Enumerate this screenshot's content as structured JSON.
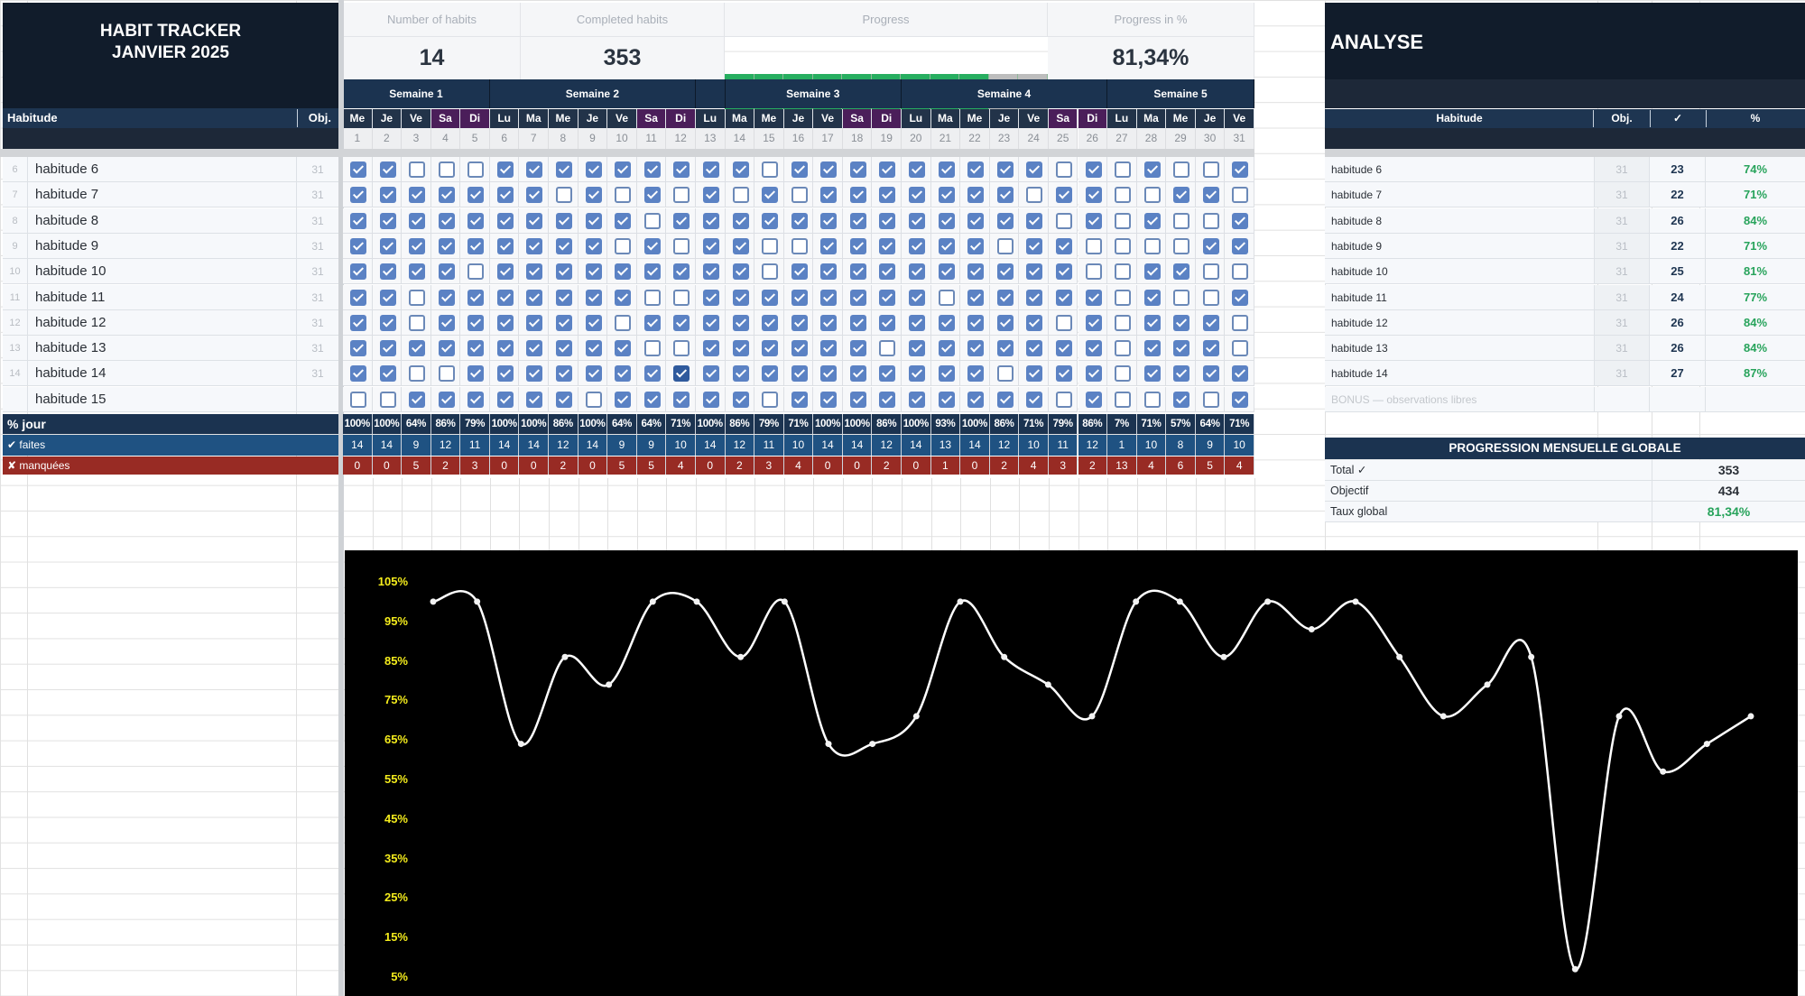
{
  "title": {
    "line1": "HABIT TRACKER",
    "line2": "JANVIER 2025"
  },
  "left_header": {
    "habit_label": "Habitude",
    "obj_label": "Obj."
  },
  "kpis": {
    "number_of_habits": {
      "label": "Number of habits",
      "value": "14"
    },
    "completed_habits": {
      "label": "Completed habits",
      "value": "353"
    },
    "progress": {
      "label": "Progress",
      "cells_total": 11,
      "cells_filled": 9,
      "fill_color": "#27ae60",
      "empty_color": "#bdbdbd"
    },
    "progress_pct": {
      "label": "Progress in %",
      "value": "81,34%"
    }
  },
  "weeks": [
    {
      "label": "Semaine 1",
      "start": 1,
      "end": 5
    },
    {
      "label": "Semaine 2",
      "start": 6,
      "end": 12
    },
    {
      "label": "",
      "start": 13,
      "end": 13
    },
    {
      "label": "Semaine 3",
      "start": 14,
      "end": 19
    },
    {
      "label": "Semaine 4",
      "start": 20,
      "end": 26
    },
    {
      "label": "Semaine 5",
      "start": 27,
      "end": 31
    }
  ],
  "days": [
    {
      "n": 1,
      "d": "Me"
    },
    {
      "n": 2,
      "d": "Je"
    },
    {
      "n": 3,
      "d": "Ve"
    },
    {
      "n": 4,
      "d": "Sa",
      "we": true
    },
    {
      "n": 5,
      "d": "Di",
      "we": true
    },
    {
      "n": 6,
      "d": "Lu"
    },
    {
      "n": 7,
      "d": "Ma"
    },
    {
      "n": 8,
      "d": "Me"
    },
    {
      "n": 9,
      "d": "Je"
    },
    {
      "n": 10,
      "d": "Ve"
    },
    {
      "n": 11,
      "d": "Sa",
      "we": true
    },
    {
      "n": 12,
      "d": "Di",
      "we": true
    },
    {
      "n": 13,
      "d": "Lu"
    },
    {
      "n": 14,
      "d": "Ma"
    },
    {
      "n": 15,
      "d": "Me"
    },
    {
      "n": 16,
      "d": "Je"
    },
    {
      "n": 17,
      "d": "Ve"
    },
    {
      "n": 18,
      "d": "Sa",
      "we": true
    },
    {
      "n": 19,
      "d": "Di",
      "we": true
    },
    {
      "n": 20,
      "d": "Lu"
    },
    {
      "n": 21,
      "d": "Ma"
    },
    {
      "n": 22,
      "d": "Me"
    },
    {
      "n": 23,
      "d": "Je"
    },
    {
      "n": 24,
      "d": "Ve"
    },
    {
      "n": 25,
      "d": "Sa",
      "we": true
    },
    {
      "n": 26,
      "d": "Di",
      "we": true
    },
    {
      "n": 27,
      "d": "Lu"
    },
    {
      "n": 28,
      "d": "Ma"
    },
    {
      "n": 29,
      "d": "Me"
    },
    {
      "n": 30,
      "d": "Je"
    },
    {
      "n": 31,
      "d": "Ve"
    }
  ],
  "habits": [
    {
      "row": "6",
      "name": "habitude 6",
      "obj": "31",
      "checks": "1100011111111101111111110101001"
    },
    {
      "row": "7",
      "name": "habitude 7",
      "obj": "31",
      "checks": "1111111010101010111111101100110"
    },
    {
      "row": "8",
      "name": "habitude 8",
      "obj": "31",
      "checks": "1111111111011111111111110101001"
    },
    {
      "row": "9",
      "name": "habitude 9",
      "obj": "31",
      "checks": "1111111110101100111111011000011"
    },
    {
      "row": "10",
      "name": "habitude 10",
      "obj": "31",
      "checks": "1111011111111101111111111001100"
    },
    {
      "row": "11",
      "name": "habitude 11",
      "obj": "31",
      "checks": "1101111111001111111101111101001"
    },
    {
      "row": "12",
      "name": "habitude 12",
      "obj": "31",
      "checks": "1101111110111111111111110101110"
    },
    {
      "row": "13",
      "name": "habitude 13",
      "obj": "31",
      "checks": "1111111111001111110111111101110"
    },
    {
      "row": "14",
      "name": "habitude 14",
      "obj": "31",
      "checks": "1100111111121111111111011101111"
    },
    {
      "row": "",
      "name": "habitude 15",
      "obj": "",
      "checks": "0011111101111101111111110100101"
    }
  ],
  "summary": {
    "pct_label": "% jour",
    "done_label": "✔ faites",
    "missed_label": "✘ manquées",
    "pct": [
      "100%",
      "100%",
      "64%",
      "86%",
      "79%",
      "100%",
      "100%",
      "86%",
      "100%",
      "64%",
      "64%",
      "71%",
      "100%",
      "86%",
      "79%",
      "71%",
      "100%",
      "100%",
      "86%",
      "100%",
      "93%",
      "100%",
      "86%",
      "71%",
      "79%",
      "86%",
      "7%",
      "71%",
      "57%",
      "64%",
      "71%"
    ],
    "done": [
      "14",
      "14",
      "9",
      "12",
      "11",
      "14",
      "14",
      "12",
      "14",
      "9",
      "9",
      "10",
      "14",
      "12",
      "11",
      "10",
      "14",
      "14",
      "12",
      "14",
      "13",
      "14",
      "12",
      "10",
      "11",
      "12",
      "1",
      "10",
      "8",
      "9",
      "10"
    ],
    "missed": [
      "0",
      "0",
      "5",
      "2",
      "3",
      "0",
      "0",
      "2",
      "0",
      "5",
      "5",
      "4",
      "0",
      "2",
      "3",
      "4",
      "0",
      "0",
      "2",
      "0",
      "1",
      "0",
      "2",
      "4",
      "3",
      "2",
      "13",
      "4",
      "6",
      "5",
      "4"
    ],
    "colors": {
      "pct_bg": "#1b3350",
      "done_bg": "#1f5282",
      "missed_bg": "#982b24"
    }
  },
  "analyse": {
    "title": "ANALYSE",
    "headers": {
      "habit": "Habitude",
      "obj": "Obj.",
      "done": "✓",
      "pct": "%"
    },
    "rows": [
      {
        "name": "habitude 6",
        "obj": "31",
        "done": "23",
        "pct": "74%"
      },
      {
        "name": "habitude 7",
        "obj": "31",
        "done": "22",
        "pct": "71%"
      },
      {
        "name": "habitude 8",
        "obj": "31",
        "done": "26",
        "pct": "84%"
      },
      {
        "name": "habitude 9",
        "obj": "31",
        "done": "22",
        "pct": "71%"
      },
      {
        "name": "habitude 10",
        "obj": "31",
        "done": "25",
        "pct": "81%"
      },
      {
        "name": "habitude 11",
        "obj": "31",
        "done": "24",
        "pct": "77%"
      },
      {
        "name": "habitude 12",
        "obj": "31",
        "done": "26",
        "pct": "84%"
      },
      {
        "name": "habitude 13",
        "obj": "31",
        "done": "26",
        "pct": "84%"
      },
      {
        "name": "habitude 14",
        "obj": "31",
        "done": "27",
        "pct": "87%"
      }
    ],
    "bonus": "BONUS — observations libres"
  },
  "progression": {
    "title": "PROGRESSION MENSUELLE GLOBALE",
    "rows": [
      {
        "label": "Total ✓",
        "value": "353",
        "green": false
      },
      {
        "label": "Objectif",
        "value": "434",
        "green": false
      },
      {
        "label": "Taux global",
        "value": "81,34%",
        "green": true
      }
    ]
  },
  "chart_data": {
    "type": "line",
    "title": "",
    "xlabel": "",
    "ylabel": "",
    "x": [
      1,
      2,
      3,
      4,
      5,
      6,
      7,
      8,
      9,
      10,
      11,
      12,
      13,
      14,
      15,
      16,
      17,
      18,
      19,
      20,
      21,
      22,
      23,
      24,
      25,
      26,
      27,
      28,
      29,
      30,
      31
    ],
    "series": [
      {
        "name": "% jour",
        "values": [
          100,
          100,
          64,
          86,
          79,
          100,
          100,
          86,
          100,
          64,
          64,
          71,
          100,
          86,
          79,
          71,
          100,
          100,
          86,
          100,
          93,
          100,
          86,
          71,
          79,
          86,
          7,
          71,
          57,
          64,
          71
        ],
        "color": "#ffffff"
      }
    ],
    "yticks": [
      "105%",
      "95%",
      "85%",
      "75%",
      "65%",
      "55%",
      "45%",
      "35%",
      "25%",
      "15%",
      "5%"
    ],
    "ylim": [
      5,
      105
    ],
    "grid": false,
    "smooth": true,
    "background": "#000000",
    "tick_color": "#f4ec1c"
  }
}
